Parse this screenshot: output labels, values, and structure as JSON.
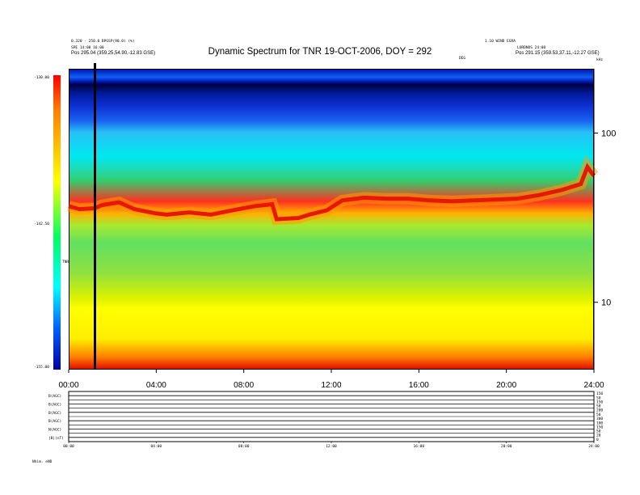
{
  "chart_data": [
    {
      "type": "heatmap",
      "title": "Dynamic Spectrum for TNR 19-OCT-2006, DOY = 292",
      "header_left": [
        "0.320 - 250.0 BPGSP(90.0) (%)",
        "SPE 14:00 16:00",
        "Pos 295.04 (359.25,54.90,-12.83 GSE)"
      ],
      "header_right": [
        "1.10 WIND  EGRA",
        "LORDNOS 24:00",
        "Pos 291.15 (359.53,37.11,-12.27 GSE)"
      ],
      "center_small_label": "DEG",
      "x_tick_labels": [
        "00:00",
        "04:00",
        "08:00",
        "12:00",
        "16:00",
        "20:00",
        "24:00"
      ],
      "x_tick_hours": [
        0,
        4,
        8,
        12,
        16,
        20,
        24
      ],
      "xlim": [
        0,
        24
      ],
      "right_axis_unit": "kHz",
      "right_axis_ticks": [
        {
          "label": "100",
          "value": 100
        },
        {
          "label": "10",
          "value": 10
        }
      ],
      "ylim": [
        4,
        240
      ],
      "y_scale": "log",
      "colorbar_labels": [
        "-130.00",
        "-142.50",
        "-155.00"
      ],
      "colorbar_values": [
        -130.0,
        -142.5,
        -155.0
      ],
      "colorbar_unit": "TNR",
      "plasma_line_khz": [
        [
          0,
          37
        ],
        [
          0.5,
          35.5
        ],
        [
          1.2,
          36
        ],
        [
          1.5,
          37.5
        ],
        [
          2.3,
          39
        ],
        [
          3.0,
          35.5
        ],
        [
          4.0,
          33.5
        ],
        [
          4.5,
          33
        ],
        [
          5.5,
          34
        ],
        [
          6.5,
          33
        ],
        [
          7.5,
          35
        ],
        [
          8.5,
          37
        ],
        [
          9.3,
          38
        ],
        [
          9.5,
          31
        ],
        [
          10.5,
          31.5
        ],
        [
          11.0,
          33
        ],
        [
          11.8,
          35
        ],
        [
          12.5,
          40
        ],
        [
          13.5,
          41.5
        ],
        [
          14.5,
          41
        ],
        [
          15.5,
          41
        ],
        [
          16.5,
          40
        ],
        [
          17.5,
          39.5
        ],
        [
          18.5,
          40
        ],
        [
          19.5,
          40.5
        ],
        [
          20.5,
          41
        ],
        [
          21.5,
          43
        ],
        [
          22.5,
          46
        ],
        [
          23.4,
          50
        ],
        [
          23.7,
          63
        ],
        [
          23.9,
          58
        ],
        [
          24,
          56
        ]
      ],
      "marker_hour": 1.2
    },
    {
      "type": "line",
      "panels": [
        {
          "name": "B(AGC)",
          "right_ticks": [
            "150",
            "50"
          ]
        },
        {
          "name": "B(AGC)",
          "right_ticks": [
            "150",
            "50"
          ]
        },
        {
          "name": "B(AGC)",
          "right_ticks": [
            "200",
            "50"
          ]
        },
        {
          "name": "B(AGC)",
          "right_ticks": [
            "300",
            "100"
          ]
        },
        {
          "name": "N(AGC)",
          "right_ticks": [
            "150",
            "50"
          ]
        },
        {
          "name": "|B|(nT)",
          "right_ticks": [
            "20",
            "0"
          ]
        }
      ],
      "x_tick_labels": [
        "00:00",
        "04:00",
        "08:00",
        "12:00",
        "16:00",
        "20:00",
        "24:00"
      ],
      "footer_label": "Nhim. eND"
    }
  ]
}
